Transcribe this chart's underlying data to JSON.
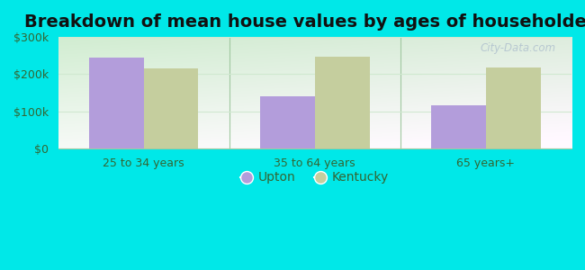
{
  "title": "Breakdown of mean house values by ages of householders",
  "categories": [
    "25 to 34 years",
    "35 to 64 years",
    "65 years+"
  ],
  "upton_values": [
    245000,
    140000,
    115000
  ],
  "kentucky_values": [
    215000,
    248000,
    218000
  ],
  "upton_color": "#b39ddb",
  "kentucky_color": "#c5ce9e",
  "ylim": [
    0,
    300000
  ],
  "yticks": [
    0,
    100000,
    200000,
    300000
  ],
  "ytick_labels": [
    "$0",
    "$100k",
    "$200k",
    "$300k"
  ],
  "legend_labels": [
    "Upton",
    "Kentucky"
  ],
  "outer_bg": "#00e8e8",
  "title_fontsize": 14,
  "bar_width": 0.32,
  "grid_color": "#d0e8d0",
  "divider_color": "#a0c8a0"
}
